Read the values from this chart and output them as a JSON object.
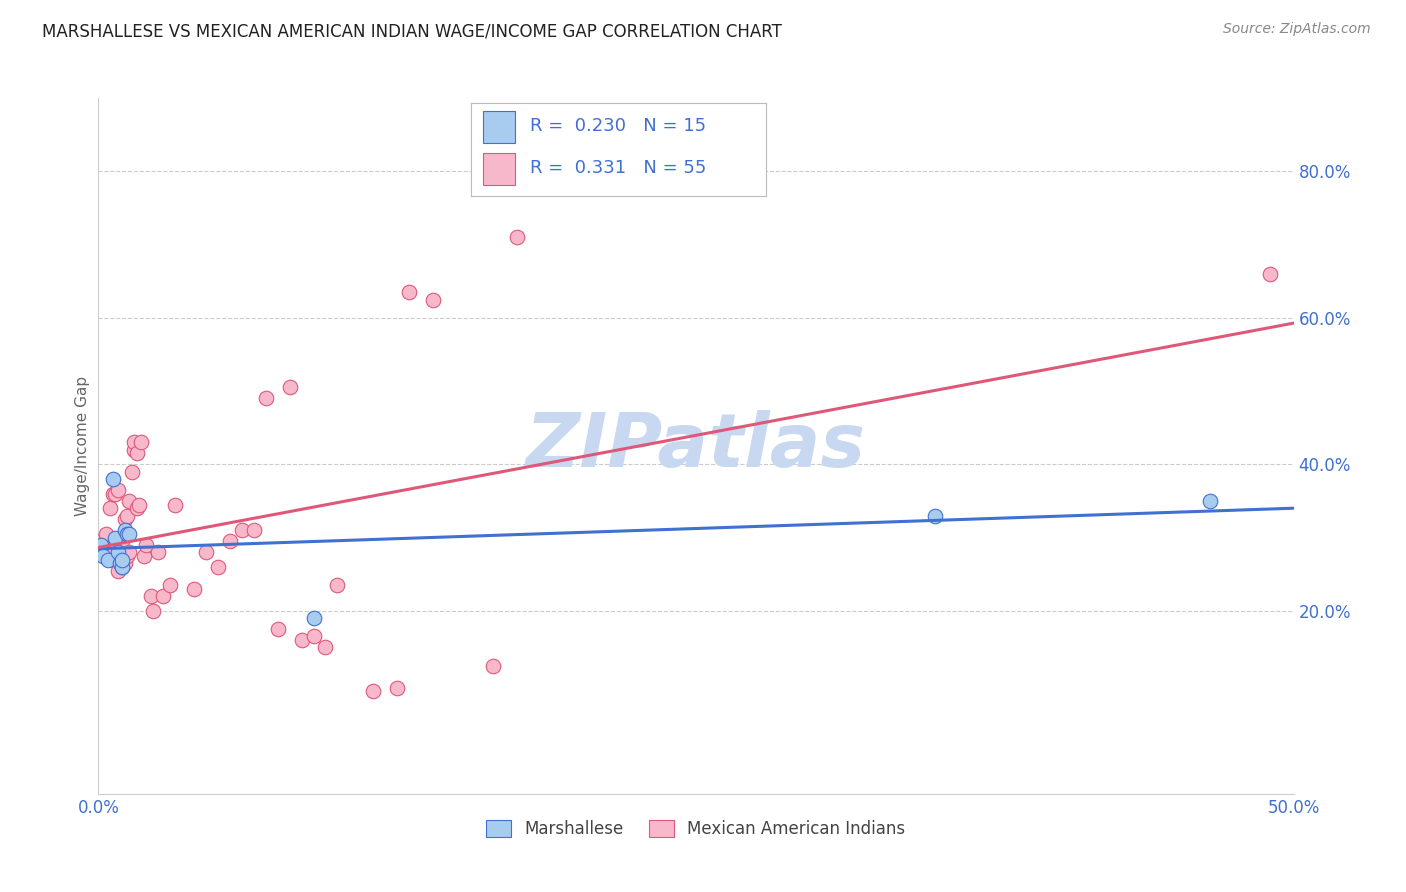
{
  "title": "MARSHALLESE VS MEXICAN AMERICAN INDIAN WAGE/INCOME GAP CORRELATION CHART",
  "source": "Source: ZipAtlas.com",
  "ylabel": "Wage/Income Gap",
  "xlim": [
    0.0,
    0.5
  ],
  "ylim": [
    -0.05,
    0.9
  ],
  "ytick_labels_right": [
    "20.0%",
    "40.0%",
    "60.0%",
    "80.0%"
  ],
  "ytick_positions_right": [
    0.2,
    0.4,
    0.6,
    0.8
  ],
  "blue_R": "0.230",
  "blue_N": "15",
  "pink_R": "0.331",
  "pink_N": "55",
  "blue_color": "#a8ccf0",
  "pink_color": "#f8b8cc",
  "blue_line_color": "#4070d0",
  "pink_line_color": "#e05878",
  "watermark": "ZIPatlas",
  "watermark_color": "#c8d8f0",
  "blue_scatter_x": [
    0.001,
    0.002,
    0.004,
    0.006,
    0.007,
    0.008,
    0.009,
    0.01,
    0.01,
    0.011,
    0.012,
    0.013,
    0.09,
    0.35,
    0.465
  ],
  "blue_scatter_y": [
    0.29,
    0.275,
    0.27,
    0.38,
    0.3,
    0.28,
    0.265,
    0.26,
    0.27,
    0.31,
    0.305,
    0.305,
    0.19,
    0.33,
    0.35
  ],
  "pink_scatter_x": [
    0.001,
    0.002,
    0.003,
    0.004,
    0.005,
    0.006,
    0.006,
    0.007,
    0.008,
    0.008,
    0.009,
    0.009,
    0.01,
    0.01,
    0.011,
    0.011,
    0.012,
    0.012,
    0.013,
    0.013,
    0.014,
    0.015,
    0.015,
    0.016,
    0.016,
    0.017,
    0.018,
    0.019,
    0.02,
    0.022,
    0.023,
    0.025,
    0.027,
    0.03,
    0.032,
    0.04,
    0.045,
    0.05,
    0.055,
    0.06,
    0.065,
    0.07,
    0.075,
    0.08,
    0.085,
    0.09,
    0.095,
    0.1,
    0.115,
    0.125,
    0.13,
    0.14,
    0.165,
    0.175,
    0.49
  ],
  "pink_scatter_y": [
    0.295,
    0.285,
    0.305,
    0.285,
    0.34,
    0.27,
    0.36,
    0.36,
    0.255,
    0.365,
    0.28,
    0.3,
    0.26,
    0.295,
    0.265,
    0.325,
    0.275,
    0.33,
    0.35,
    0.28,
    0.39,
    0.42,
    0.43,
    0.34,
    0.415,
    0.345,
    0.43,
    0.275,
    0.29,
    0.22,
    0.2,
    0.28,
    0.22,
    0.235,
    0.345,
    0.23,
    0.28,
    0.26,
    0.295,
    0.31,
    0.31,
    0.49,
    0.175,
    0.505,
    0.16,
    0.165,
    0.15,
    0.235,
    0.09,
    0.095,
    0.635,
    0.625,
    0.125,
    0.71,
    0.66
  ]
}
